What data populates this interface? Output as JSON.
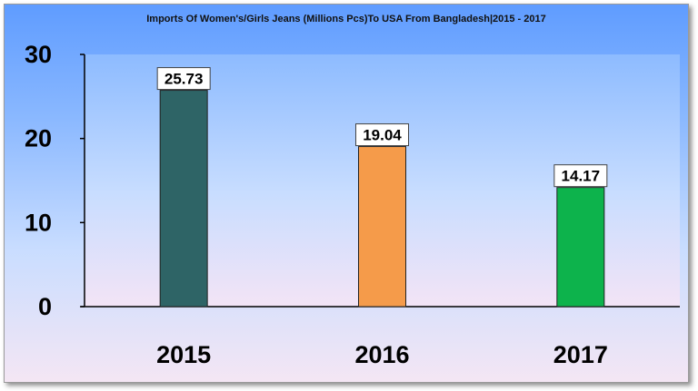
{
  "chart_data": {
    "type": "bar",
    "title": "Imports Of Women's/Girls Jeans (Millions Pcs)To USA From Bangladesh|2015 - 2017",
    "categories": [
      "2015",
      "2016",
      "2017"
    ],
    "values": [
      25.73,
      19.04,
      14.17
    ],
    "value_labels": [
      "25.73",
      "19.04",
      "14.17"
    ],
    "bar_colors": [
      "#2e6466",
      "#f59b4a",
      "#0db34c"
    ],
    "ylim": [
      0,
      30
    ],
    "yticks": [
      "0",
      "10",
      "20",
      "30"
    ],
    "ytick_values": [
      0,
      10,
      20,
      30
    ],
    "grid": false,
    "legend": "none",
    "xlabel": "",
    "ylabel": ""
  }
}
